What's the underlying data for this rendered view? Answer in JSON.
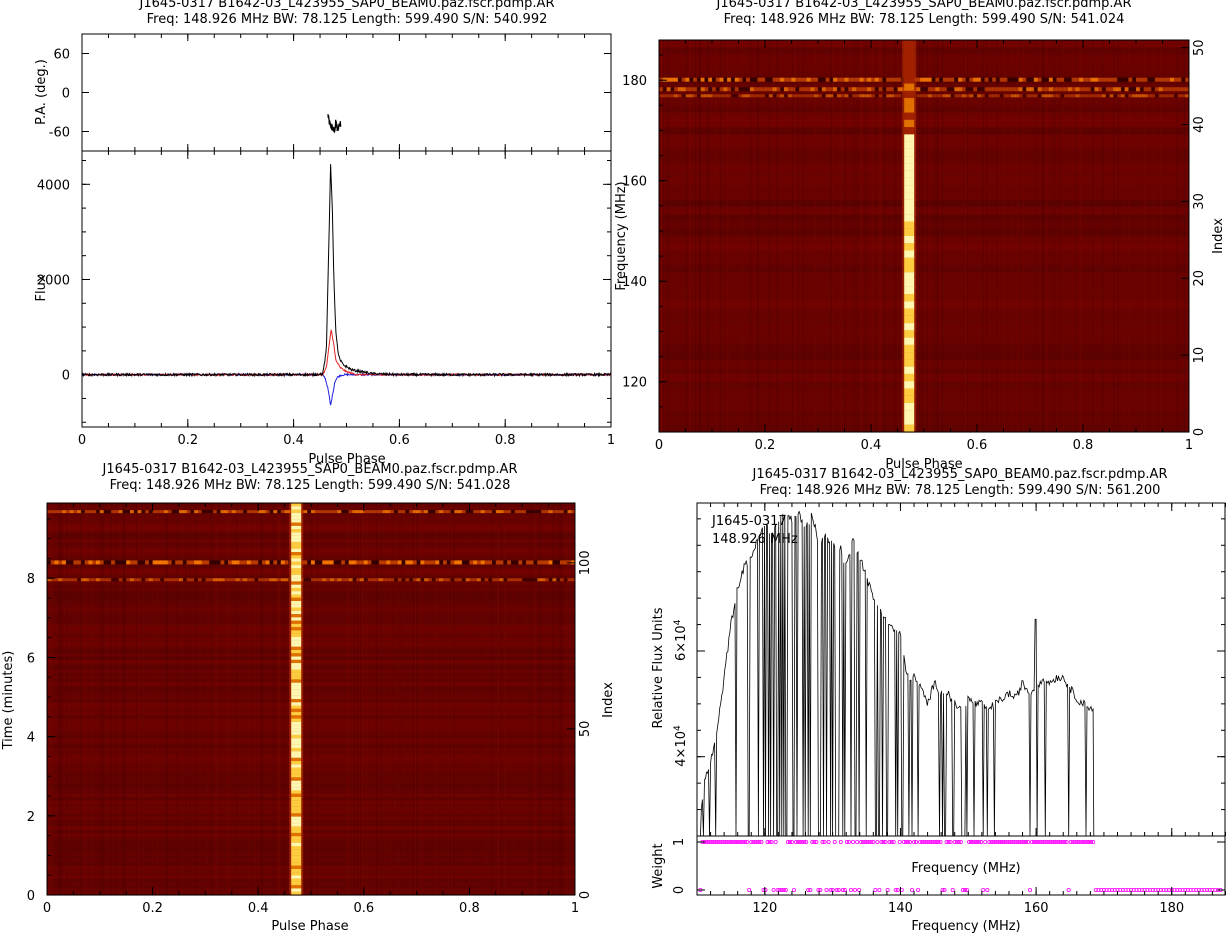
{
  "chart_data": [
    {
      "type": "line",
      "panel": "profile",
      "title": "J1645-0317 B1642-03_L423955_SAP0_BEAM0.paz.fscr.pdmp.AR",
      "subtitle": "Freq: 148.926 MHz BW: 78.125 Length: 599.490 S/N: 540.992",
      "xlabel": "Pulse Phase",
      "xlim": [
        0,
        1
      ],
      "xticks": [
        "0",
        "0.2",
        "0.4",
        "0.6",
        "0.8",
        "1"
      ],
      "pa": {
        "ylabel": "P.A. (deg.)",
        "ylim": [
          -90,
          90
        ],
        "yticks": [
          "60",
          "0",
          "-60"
        ],
        "x": [
          0.465,
          0.468,
          0.471,
          0.474,
          0.477,
          0.48,
          0.483,
          0.486,
          0.489
        ],
        "y": [
          -35,
          -48,
          -52,
          -55,
          -60,
          -45,
          -58,
          -50,
          -48
        ]
      },
      "flux": {
        "ylabel": "Flux",
        "ylim": [
          -1100,
          4700
        ],
        "yticks": [
          "4000",
          "2000",
          "0"
        ],
        "series": [
          {
            "color": "#000000",
            "x": [
              0,
              0.44,
              0.455,
              0.462,
              0.466,
              0.47,
              0.473,
              0.476,
              0.48,
              0.484,
              0.488,
              0.495,
              0.51,
              0.53,
              0.55,
              0.6,
              1
            ],
            "y": [
              0,
              0,
              20,
              500,
              2500,
              4400,
              3600,
              2000,
              900,
              450,
              300,
              200,
              100,
              60,
              20,
              0,
              0
            ]
          },
          {
            "color": "#e02020",
            "x": [
              0,
              0.455,
              0.462,
              0.467,
              0.471,
              0.475,
              0.48,
              0.488,
              0.5,
              0.52,
              1
            ],
            "y": [
              0,
              0,
              150,
              600,
              950,
              700,
              300,
              150,
              60,
              0,
              0
            ]
          },
          {
            "color": "#2020e0",
            "x": [
              0,
              0.455,
              0.46,
              0.465,
              0.47,
              0.474,
              0.478,
              0.483,
              0.49,
              0.5,
              1
            ],
            "y": [
              0,
              0,
              -80,
              -300,
              -650,
              -400,
              -150,
              -50,
              -10,
              0,
              0
            ]
          }
        ]
      }
    },
    {
      "type": "heatmap",
      "panel": "freq-phase",
      "title": "J1645-0317 B1642-03_L423955_SAP0_BEAM0.paz.fscr.pdmp.AR",
      "subtitle": "Freq: 148.926 MHz BW: 78.125 Length: 599.490 S/N: 541.024",
      "xlabel": "Pulse Phase",
      "ylabel": "Frequency (MHz)",
      "y2label": "Index",
      "xlim": [
        0,
        1
      ],
      "ylim": [
        110,
        188
      ],
      "xticks": [
        "0",
        "0.2",
        "0.4",
        "0.6",
        "0.8",
        "1"
      ],
      "yticks": [
        "120",
        "140",
        "160",
        "180"
      ],
      "y2ticks": [
        "0",
        "10",
        "20",
        "30",
        "40",
        "50"
      ],
      "pulse_phase": 0.472
    },
    {
      "type": "heatmap",
      "panel": "time-phase",
      "title": "J1645-0317 B1642-03_L423955_SAP0_BEAM0.paz.fscr.pdmp.AR",
      "subtitle": "Freq: 148.926 MHz BW: 78.125 Length: 599.490 S/N: 541.028",
      "xlabel": "Pulse Phase",
      "ylabel": "Time (minutes)",
      "y2label": "Index",
      "xlim": [
        0,
        1
      ],
      "ylim": [
        0,
        9.9
      ],
      "xticks": [
        "0",
        "0.2",
        "0.4",
        "0.6",
        "0.8",
        "1"
      ],
      "yticks": [
        "0",
        "2",
        "4",
        "6",
        "8"
      ],
      "y2ticks": [
        "0",
        "50",
        "100"
      ],
      "pulse_phase": 0.472
    },
    {
      "type": "line",
      "panel": "bandpass",
      "title": "J1645-0317 B1642-03_L423955_SAP0_BEAM0.paz.fscr.pdmp.AR",
      "subtitle": "Freq: 148.926 MHz BW: 78.125 Length: 599.490 S/N: 561.200",
      "annotation": [
        "J1645-0317",
        "148.926 MHz"
      ],
      "xlabel": "Frequency (MHz)",
      "inner_xlabel": "Frequency (MHz)",
      "ylabel": "Relative Flux Units",
      "weight_label": "Weight",
      "xlim": [
        110,
        188
      ],
      "ylim": [
        2.5,
        8.8
      ],
      "yexp": "4",
      "xticks": [
        "120",
        "140",
        "160",
        "180"
      ],
      "yticks": [
        "4",
        "6"
      ],
      "wticks": [
        "0",
        "1"
      ],
      "envelope": {
        "x": [
          110.5,
          111,
          112,
          113,
          114,
          115,
          116,
          117,
          118,
          119,
          120,
          121,
          122,
          123,
          124,
          125,
          126,
          127,
          128,
          129,
          130,
          131,
          132,
          133,
          134,
          135,
          136,
          137,
          138,
          139,
          140,
          141,
          142,
          143,
          144,
          145,
          146,
          147,
          148,
          149,
          150,
          151,
          152,
          153,
          154,
          155,
          156,
          157,
          158,
          159,
          160,
          161,
          162,
          163,
          164,
          165,
          166,
          167,
          168.5
        ],
        "y": [
          2.8,
          3.5,
          3.9,
          4.5,
          5.5,
          6.5,
          7.2,
          7.6,
          7.8,
          8.1,
          8.4,
          8.2,
          8.5,
          8.6,
          8.5,
          8.6,
          8.3,
          8.6,
          8.0,
          8.2,
          8.0,
          8.0,
          7.6,
          8.1,
          7.8,
          7.4,
          7.0,
          6.8,
          6.6,
          6.4,
          6.3,
          5.5,
          5.5,
          5.3,
          5.0,
          5.4,
          5.2,
          5.2,
          5.0,
          4.9,
          5.1,
          5.0,
          5.0,
          4.9,
          5.0,
          5.1,
          5.2,
          5.1,
          5.4,
          5.2,
          5.3,
          5.5,
          5.4,
          5.5,
          5.5,
          5.3,
          5.1,
          5.0,
          4.9
        ]
      },
      "spike": {
        "x": 160,
        "y": 6.6
      }
    }
  ]
}
